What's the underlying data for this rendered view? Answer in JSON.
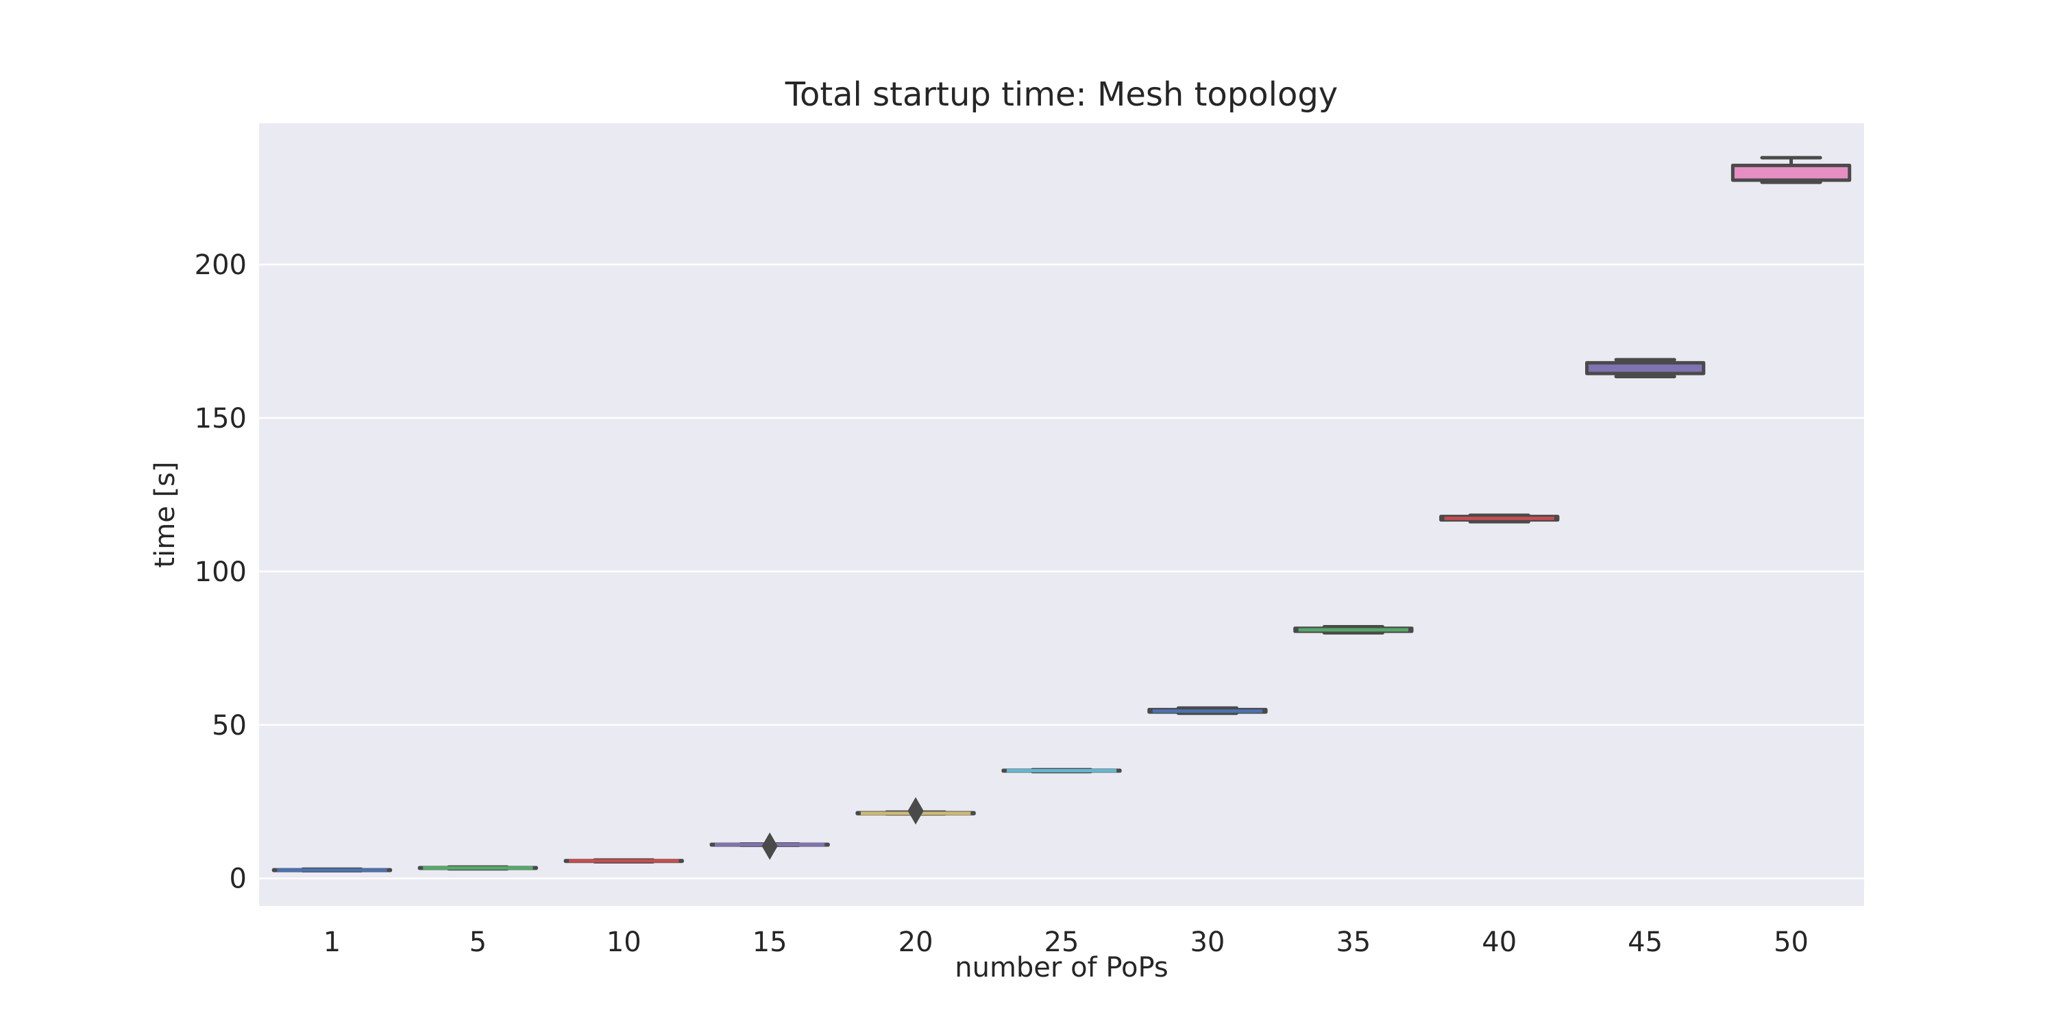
{
  "chart_data": {
    "type": "box",
    "title": "Total startup time: Mesh topology",
    "xlabel": "number of PoPs",
    "ylabel": "time [s]",
    "ylim": [
      -9,
      246
    ],
    "yticks": [
      0,
      50,
      100,
      150,
      200
    ],
    "grid": true,
    "background_color": "#eaeaf2",
    "grid_color": "#ffffff",
    "line_color": "#4a4a4a",
    "categories": [
      "1",
      "5",
      "10",
      "15",
      "20",
      "25",
      "30",
      "35",
      "40",
      "45",
      "50"
    ],
    "boxes": [
      {
        "category": "1",
        "whislo": 2.5,
        "q1": 2.6,
        "med": 2.7,
        "q3": 2.8,
        "whishi": 3.0,
        "fliers": [],
        "color": "#4c72b0"
      },
      {
        "category": "5",
        "whislo": 3.1,
        "q1": 3.3,
        "med": 3.4,
        "q3": 3.5,
        "whishi": 3.7,
        "fliers": [],
        "color": "#55a868"
      },
      {
        "category": "10",
        "whislo": 5.4,
        "q1": 5.6,
        "med": 5.7,
        "q3": 5.8,
        "whishi": 6.0,
        "fliers": [],
        "color": "#c44e52"
      },
      {
        "category": "15",
        "whislo": 10.8,
        "q1": 10.9,
        "med": 11.0,
        "q3": 11.1,
        "whishi": 11.2,
        "fliers": [
          10.5
        ],
        "color": "#8172b2"
      },
      {
        "category": "20",
        "whislo": 21.0,
        "q1": 21.1,
        "med": 21.2,
        "q3": 21.4,
        "whishi": 21.6,
        "fliers": [
          22.0
        ],
        "color": "#ccb974"
      },
      {
        "category": "25",
        "whislo": 34.8,
        "q1": 35.0,
        "med": 35.1,
        "q3": 35.2,
        "whishi": 35.4,
        "fliers": [],
        "color": "#64b5cd"
      },
      {
        "category": "30",
        "whislo": 53.8,
        "q1": 54.2,
        "med": 54.5,
        "q3": 55.0,
        "whishi": 55.5,
        "fliers": [],
        "color": "#4c72b0"
      },
      {
        "category": "35",
        "whislo": 80.0,
        "q1": 80.5,
        "med": 81.0,
        "q3": 81.5,
        "whishi": 82.0,
        "fliers": [],
        "color": "#55a868"
      },
      {
        "category": "40",
        "whislo": 116.2,
        "q1": 116.8,
        "med": 117.3,
        "q3": 117.9,
        "whishi": 118.3,
        "fliers": [],
        "color": "#c44e52"
      },
      {
        "category": "45",
        "whislo": 163.5,
        "q1": 164.5,
        "med": 165.8,
        "q3": 168.0,
        "whishi": 169.0,
        "fliers": [],
        "color": "#8172b2"
      },
      {
        "category": "50",
        "whislo": 226.8,
        "q1": 227.5,
        "med": 229.6,
        "q3": 232.3,
        "whishi": 234.8,
        "fliers": [],
        "color": "#e58fc4"
      }
    ]
  }
}
